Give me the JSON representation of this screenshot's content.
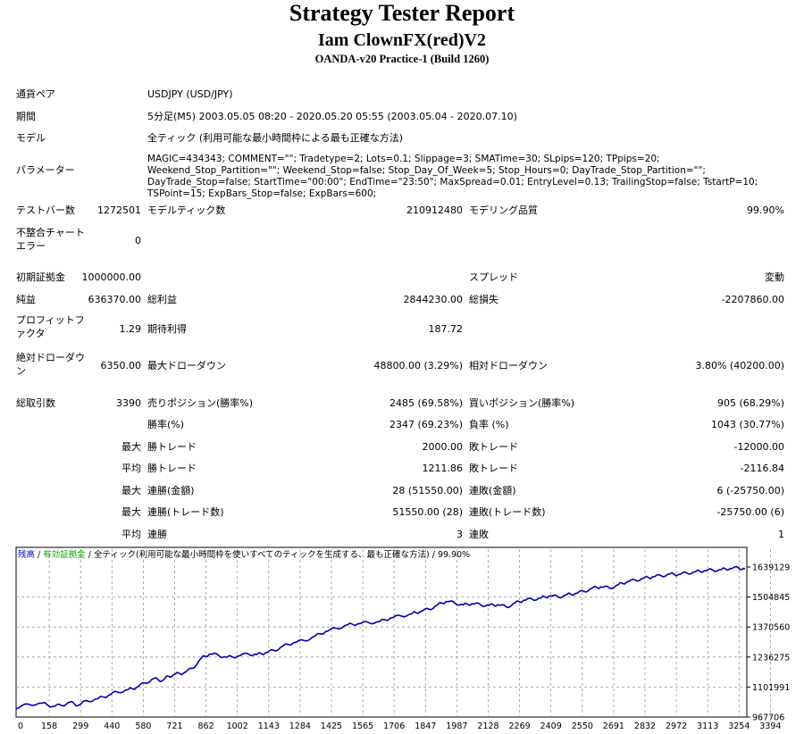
{
  "header": {
    "title": "Strategy Tester Report",
    "subtitle": "Iam ClownFX(red)V2",
    "server": "OANDA-v20 Practice-1 (Build 1260)"
  },
  "info": {
    "pair_label": "通貨ペア",
    "pair_value": "USDJPY (USD/JPY)",
    "period_label": "期間",
    "period_value": "5分足(M5) 2003.05.05 08:20 - 2020.05.20 05:55 (2003.05.04 - 2020.07.10)",
    "model_label": "モデル",
    "model_value": "全ティック (利用可能な最小時間枠による最も正確な方法)",
    "params_label": "パラメーター",
    "params_value": "MAGIC=434343; COMMENT=\"\"; Tradetype=2; Lots=0.1; Slippage=3; SMATime=30; SLpips=120; TPpips=20; Weekend_Stop_Partition=\"\"; Weekend_Stop=false; Stop_Day_Of_Week=5; Stop_Hours=0; DayTrade_Stop_Partition=\"\"; DayTrade_Stop=false; StartTime=\"00:00\"; EndTime=\"23:50\"; MaxSpread=0.01; EntryLevel=0.13; TrailingStop=false; TstartP=10; TSPoint=15; ExpBars_Stop=false; ExpBars=600;"
  },
  "stats": {
    "bars_label": "テストバー数",
    "bars_value": "1272501",
    "ticks_label": "モデルティック数",
    "ticks_value": "210912480",
    "quality_label": "モデリング品質",
    "quality_value": "99.90%",
    "mismatch_label": "不整合チャートエラー",
    "mismatch_value": "0",
    "deposit_label": "初期証拠金",
    "deposit_value": "1000000.00",
    "spread_label": "スプレッド",
    "spread_value": "変動",
    "net_label": "純益",
    "net_value": "636370.00",
    "gross_profit_label": "総利益",
    "gross_profit_value": "2844230.00",
    "gross_loss_label": "総損失",
    "gross_loss_value": "-2207860.00",
    "pf_label": "プロフィットファクタ",
    "pf_value": "1.29",
    "payoff_label": "期待利得",
    "payoff_value": "187.72",
    "abs_dd_label": "絶対ドローダウン",
    "abs_dd_value": "6350.00",
    "max_dd_label": "最大ドローダウン",
    "max_dd_value": "48800.00 (3.29%)",
    "rel_dd_label": "相対ドローダウン",
    "rel_dd_value": "3.80% (40200.00)",
    "total_label": "総取引数",
    "total_value": "3390",
    "short_label": "売りポジション(勝率%)",
    "short_value": "2485 (69.58%)",
    "long_label": "買いポジション(勝率%)",
    "long_value": "905 (68.29%)",
    "win_rate_label": "勝率(%)",
    "win_rate_value": "2347 (69.23%)",
    "loss_rate_label": "負率 (%)",
    "loss_rate_value": "1043 (30.77%)",
    "max_prefix": "最大",
    "avg_prefix": "平均",
    "max_win_label": "勝トレード",
    "max_win_value": "2000.00",
    "max_loss_label": "敗トレード",
    "max_loss_value": "-12000.00",
    "avg_win_label": "勝トレード",
    "avg_win_value": "1211.86",
    "avg_loss_label": "敗トレード",
    "avg_loss_value": "-2116.84",
    "cons_win_amt_label": "連勝(金額)",
    "cons_win_amt_value": "28 (51550.00)",
    "cons_loss_amt_label": "連敗(金額)",
    "cons_loss_amt_value": "6 (-25750.00)",
    "cons_win_cnt_label": "連勝(トレード数)",
    "cons_win_cnt_value": "51550.00 (28)",
    "cons_loss_cnt_label": "連敗(トレード数)",
    "cons_loss_cnt_value": "-25750.00 (6)",
    "avg_cons_win_label": "連勝",
    "avg_cons_win_value": "3",
    "avg_cons_loss_label": "連敗",
    "avg_cons_loss_value": "1"
  },
  "chart_header": {
    "balance": "残高",
    "sep1": " / ",
    "equity": "有効証拠金",
    "rest": " / 全ティック(利用可能な最小時間枠を使いすべてのティックを生成する、最も正確な方法) / 99.90%"
  },
  "chart_data": {
    "type": "line",
    "title": "",
    "xlabel": "",
    "ylabel": "",
    "x_ticks": [
      "0",
      "158",
      "299",
      "440",
      "580",
      "721",
      "862",
      "1002",
      "1143",
      "1284",
      "1425",
      "1565",
      "1706",
      "1847",
      "1987",
      "2128",
      "2269",
      "2409",
      "2550",
      "2691",
      "2832",
      "2972",
      "3113",
      "3254",
      "3394"
    ],
    "y_ticks": [
      "1639129",
      "1504845",
      "1370560",
      "1236275",
      "1101991",
      "967706"
    ],
    "xlim": [
      0,
      3390
    ],
    "ylim": [
      967706,
      1639129
    ],
    "grid": true,
    "series": [
      {
        "color": "#0000aa",
        "x": [
          0,
          60,
          120,
          170,
          210,
          250,
          290,
          330,
          380,
          430,
          470,
          520,
          560,
          600,
          640,
          680,
          710,
          740,
          780,
          820,
          860,
          900,
          940,
          980,
          1030,
          1080,
          1120,
          1160,
          1200,
          1240,
          1290,
          1340,
          1390,
          1440,
          1490,
          1540,
          1590,
          1640,
          1690,
          1740,
          1790,
          1840,
          1880,
          1920,
          1960,
          2000,
          2040,
          2080,
          2120,
          2160,
          2200,
          2240,
          2280,
          2320,
          2360,
          2400,
          2440,
          2480,
          2520,
          2560,
          2600,
          2640,
          2680,
          2720,
          2760,
          2800,
          2840,
          2880,
          2920,
          2960,
          3000,
          3040,
          3080,
          3120,
          3160,
          3200,
          3240,
          3280,
          3320,
          3360,
          3390
        ],
        "y": [
          1005000,
          1025000,
          1030000,
          1015000,
          1020000,
          1035000,
          1020000,
          1040000,
          1050000,
          1065000,
          1080000,
          1090000,
          1100000,
          1120000,
          1140000,
          1130000,
          1150000,
          1160000,
          1165000,
          1185000,
          1230000,
          1250000,
          1245000,
          1235000,
          1240000,
          1250000,
          1248000,
          1255000,
          1265000,
          1285000,
          1300000,
          1310000,
          1330000,
          1350000,
          1365000,
          1380000,
          1385000,
          1390000,
          1395000,
          1410000,
          1420000,
          1430000,
          1440000,
          1450000,
          1470000,
          1485000,
          1478000,
          1470000,
          1475000,
          1470000,
          1468000,
          1470000,
          1460000,
          1478000,
          1490000,
          1495000,
          1500000,
          1510000,
          1505000,
          1515000,
          1520000,
          1530000,
          1545000,
          1550000,
          1545000,
          1560000,
          1572000,
          1580000,
          1590000,
          1595000,
          1600000,
          1608000,
          1605000,
          1612000,
          1618000,
          1622000,
          1625000,
          1628000,
          1632000,
          1635000,
          1632000
        ]
      }
    ]
  }
}
